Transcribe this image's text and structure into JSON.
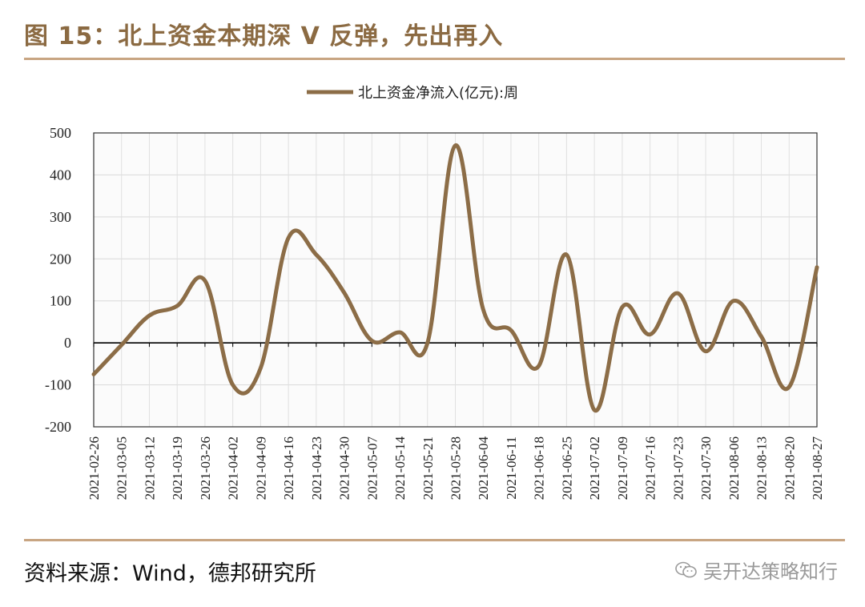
{
  "header": {
    "title": "图 15：北上资金本期深 V 反弹，先出再入"
  },
  "footer": {
    "source": "资料来源：Wind，德邦研究所",
    "watermark": "吴开达策略知行",
    "watermark_icon": "wechat-icon"
  },
  "colors": {
    "accent": "#8b6a42",
    "line": "#8c6d47",
    "rule": "#c8a582",
    "grid": "#d9d9d9"
  },
  "chart_data": {
    "type": "line",
    "title": "",
    "xlabel": "",
    "ylabel": "",
    "ylim": [
      -200,
      500
    ],
    "yticks": [
      -200,
      -100,
      0,
      100,
      200,
      300,
      400,
      500
    ],
    "grid": true,
    "smooth": true,
    "legend_position": "top-center",
    "categories": [
      "2021-02-26",
      "2021-03-05",
      "2021-03-12",
      "2021-03-19",
      "2021-03-26",
      "2021-04-02",
      "2021-04-09",
      "2021-04-16",
      "2021-04-23",
      "2021-04-30",
      "2021-05-07",
      "2021-05-14",
      "2021-05-21",
      "2021-05-28",
      "2021-06-04",
      "2021-06-11",
      "2021-06-18",
      "2021-06-25",
      "2021-07-02",
      "2021-07-09",
      "2021-07-16",
      "2021-07-23",
      "2021-07-30",
      "2021-08-06",
      "2021-08-13",
      "2021-08-20",
      "2021-08-27"
    ],
    "series": [
      {
        "name": "北上资金净流入(亿元):周",
        "values": [
          -75,
          -5,
          65,
          88,
          148,
          -100,
          -60,
          250,
          210,
          120,
          5,
          25,
          0,
          470,
          80,
          30,
          -55,
          210,
          -160,
          85,
          20,
          118,
          -20,
          100,
          15,
          -105,
          180
        ]
      }
    ]
  }
}
